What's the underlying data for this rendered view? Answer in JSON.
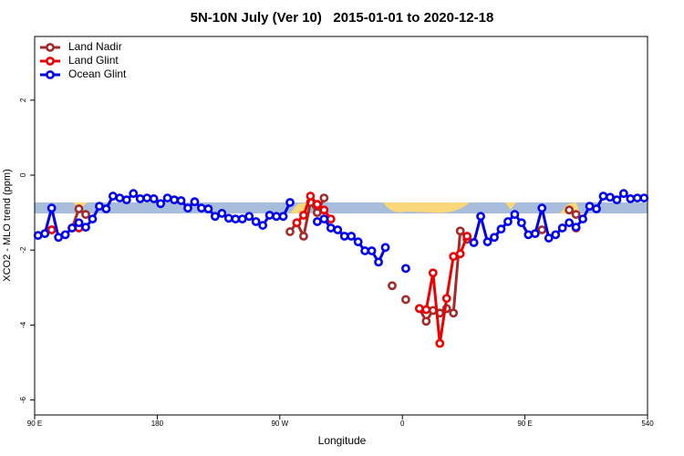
{
  "chart_data": {
    "type": "line",
    "title": "5N-10N July (Ver 10)   2015-01-01 to 2020-12-18",
    "x_label": "Longitude",
    "y_label": "XCO2 - MLO trend (ppm)",
    "x": [
      92.5,
      97.5,
      102.5,
      107.5,
      112.5,
      117.5,
      122.5,
      127.5,
      132.5,
      137.5,
      142.5,
      147.5,
      152.5,
      157.5,
      162.5,
      167.5,
      172.5,
      177.5,
      182.5,
      187.5,
      192.5,
      197.5,
      202.5,
      207.5,
      212.5,
      217.5,
      222.5,
      227.5,
      232.5,
      237.5,
      242.5,
      247.5,
      252.5,
      257.5,
      262.5,
      267.5,
      272.5,
      277.5,
      282.5,
      287.5,
      292.5,
      297.5,
      302.5,
      307.5,
      312.5,
      317.5,
      322.5,
      327.5,
      332.5,
      337.5,
      342.5,
      347.5,
      352.5,
      357.5,
      362.5,
      367.5,
      372.5,
      377.5,
      382.5,
      387.5,
      392.5,
      397.5,
      402.5,
      407.5,
      412.5,
      417.5,
      422.5,
      427.5,
      432.5,
      437.5,
      442.5,
      447.5,
      452.5,
      457.5,
      462.5,
      467.5,
      472.5,
      477.5,
      482.5,
      487.5,
      492.5,
      497.5,
      502.5,
      507.5,
      512.5,
      517.5,
      522.5,
      527.5,
      532.5,
      537.5
    ],
    "series": [
      {
        "name": "Land Nadir",
        "color": "#a52a2a",
        "values": [
          null,
          null,
          -1.46,
          null,
          null,
          -1.41,
          -0.9,
          -1.05,
          null,
          null,
          null,
          null,
          null,
          null,
          null,
          null,
          null,
          null,
          null,
          null,
          null,
          null,
          null,
          null,
          null,
          null,
          null,
          null,
          null,
          null,
          null,
          null,
          null,
          null,
          null,
          null,
          null,
          -1.51,
          -1.27,
          -1.63,
          -0.73,
          -1.0,
          -0.61,
          null,
          null,
          null,
          null,
          null,
          null,
          null,
          null,
          null,
          -2.95,
          null,
          -3.32,
          null,
          -3.56,
          -3.9,
          -3.61,
          -3.68,
          -3.56,
          -3.68,
          -1.49,
          -1.71,
          null,
          null,
          null,
          null,
          null,
          null,
          null,
          null,
          null,
          null,
          -1.46,
          null,
          null,
          null,
          -0.93,
          -1.05,
          null,
          null,
          null,
          null,
          null,
          null,
          null,
          null,
          null,
          null
        ]
      },
      {
        "name": "Land Glint",
        "color": "#ee0000",
        "values": [
          null,
          null,
          -1.46,
          null,
          null,
          null,
          -1.41,
          null,
          null,
          null,
          null,
          null,
          null,
          null,
          null,
          null,
          null,
          null,
          null,
          null,
          null,
          null,
          null,
          null,
          null,
          null,
          null,
          null,
          null,
          null,
          null,
          null,
          null,
          null,
          null,
          null,
          null,
          null,
          -1.27,
          -1.07,
          -0.56,
          -0.78,
          -0.93,
          -1.17,
          null,
          null,
          null,
          null,
          null,
          null,
          null,
          null,
          null,
          null,
          null,
          null,
          -3.56,
          -3.59,
          -2.61,
          -4.49,
          -3.29,
          -2.17,
          -2.1,
          -1.63,
          -1.8,
          null,
          null,
          null,
          null,
          null,
          null,
          null,
          null,
          null,
          null,
          null,
          null,
          null,
          null,
          -1.41,
          null,
          null,
          null,
          null,
          null,
          null,
          null,
          null,
          null,
          null
        ]
      },
      {
        "name": "Ocean Glint",
        "color": "#0000ee",
        "values": [
          -1.61,
          -1.56,
          -0.88,
          -1.66,
          -1.59,
          -1.41,
          -1.27,
          -1.39,
          -1.17,
          -0.83,
          -0.9,
          -0.56,
          -0.61,
          -0.66,
          -0.49,
          -0.63,
          -0.61,
          -0.63,
          -0.76,
          -0.61,
          -0.66,
          -0.68,
          -0.88,
          -0.71,
          -0.88,
          -0.9,
          -1.1,
          -1.02,
          -1.15,
          -1.17,
          -1.17,
          -1.1,
          -1.24,
          -1.34,
          -1.07,
          -1.1,
          -1.1,
          -0.73,
          null,
          null,
          null,
          -1.24,
          -1.17,
          -1.41,
          -1.46,
          -1.63,
          -1.63,
          -1.78,
          -2.02,
          -2.02,
          -2.32,
          -1.93,
          null,
          null,
          -2.49,
          null,
          null,
          null,
          null,
          null,
          null,
          null,
          null,
          null,
          -1.8,
          -1.1,
          -1.78,
          -1.66,
          -1.44,
          -1.24,
          -1.05,
          -1.27,
          -1.59,
          -1.56,
          -0.88,
          -1.68,
          -1.59,
          -1.41,
          -1.27,
          -1.39,
          -1.17,
          -0.83,
          -0.9,
          -0.56,
          -0.59,
          -0.66,
          -0.49,
          -0.63,
          -0.61,
          -0.61
        ]
      }
    ],
    "xlim": [
      90,
      540
    ],
    "xticks": [
      {
        "value": 90,
        "label": "90 E"
      },
      180,
      {
        "value": 270,
        "label": "90 W"
      },
      {
        "value": 360,
        "label": "0"
      },
      {
        "value": 450,
        "label": "90 E"
      },
      540
    ],
    "ylim": [
      -6.4,
      3.7
    ],
    "yticks": [
      -6,
      -4,
      -2,
      0,
      2
    ],
    "legend": "top-left"
  }
}
